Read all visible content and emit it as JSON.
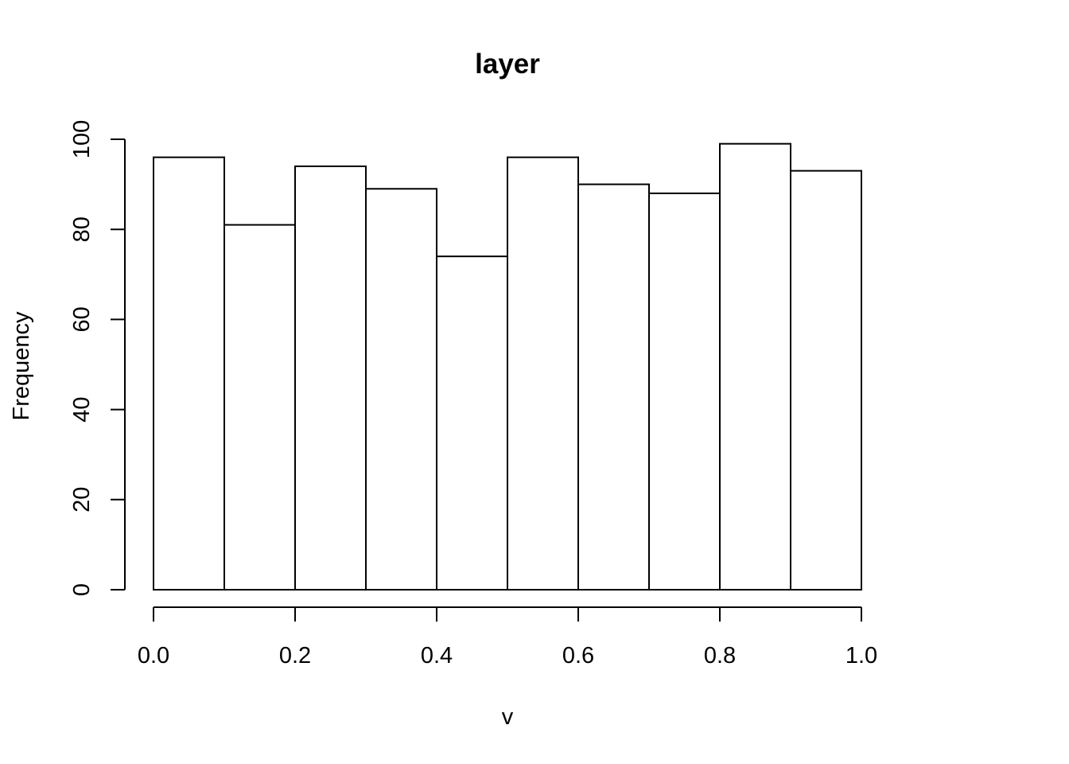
{
  "chart_data": {
    "type": "bar",
    "subtype": "histogram",
    "title": "layer",
    "xlabel": "v",
    "ylabel": "Frequency",
    "bin_edges": [
      0.0,
      0.1,
      0.2,
      0.3,
      0.4,
      0.5,
      0.6,
      0.7,
      0.8,
      0.9,
      1.0
    ],
    "values": [
      96,
      81,
      94,
      89,
      74,
      96,
      90,
      88,
      99,
      93
    ],
    "xlim": [
      0.0,
      1.0
    ],
    "ylim": [
      0,
      100
    ],
    "x_ticks": [
      0.0,
      0.2,
      0.4,
      0.6,
      0.8,
      1.0
    ],
    "x_tick_labels": [
      "0.0",
      "0.2",
      "0.4",
      "0.6",
      "0.8",
      "1.0"
    ],
    "y_ticks": [
      0,
      20,
      40,
      60,
      80,
      100
    ],
    "y_tick_labels": [
      "0",
      "20",
      "40",
      "60",
      "80",
      "100"
    ],
    "grid": false,
    "legend": "none",
    "bar_fill": "#ffffff",
    "bar_stroke": "#000000"
  }
}
